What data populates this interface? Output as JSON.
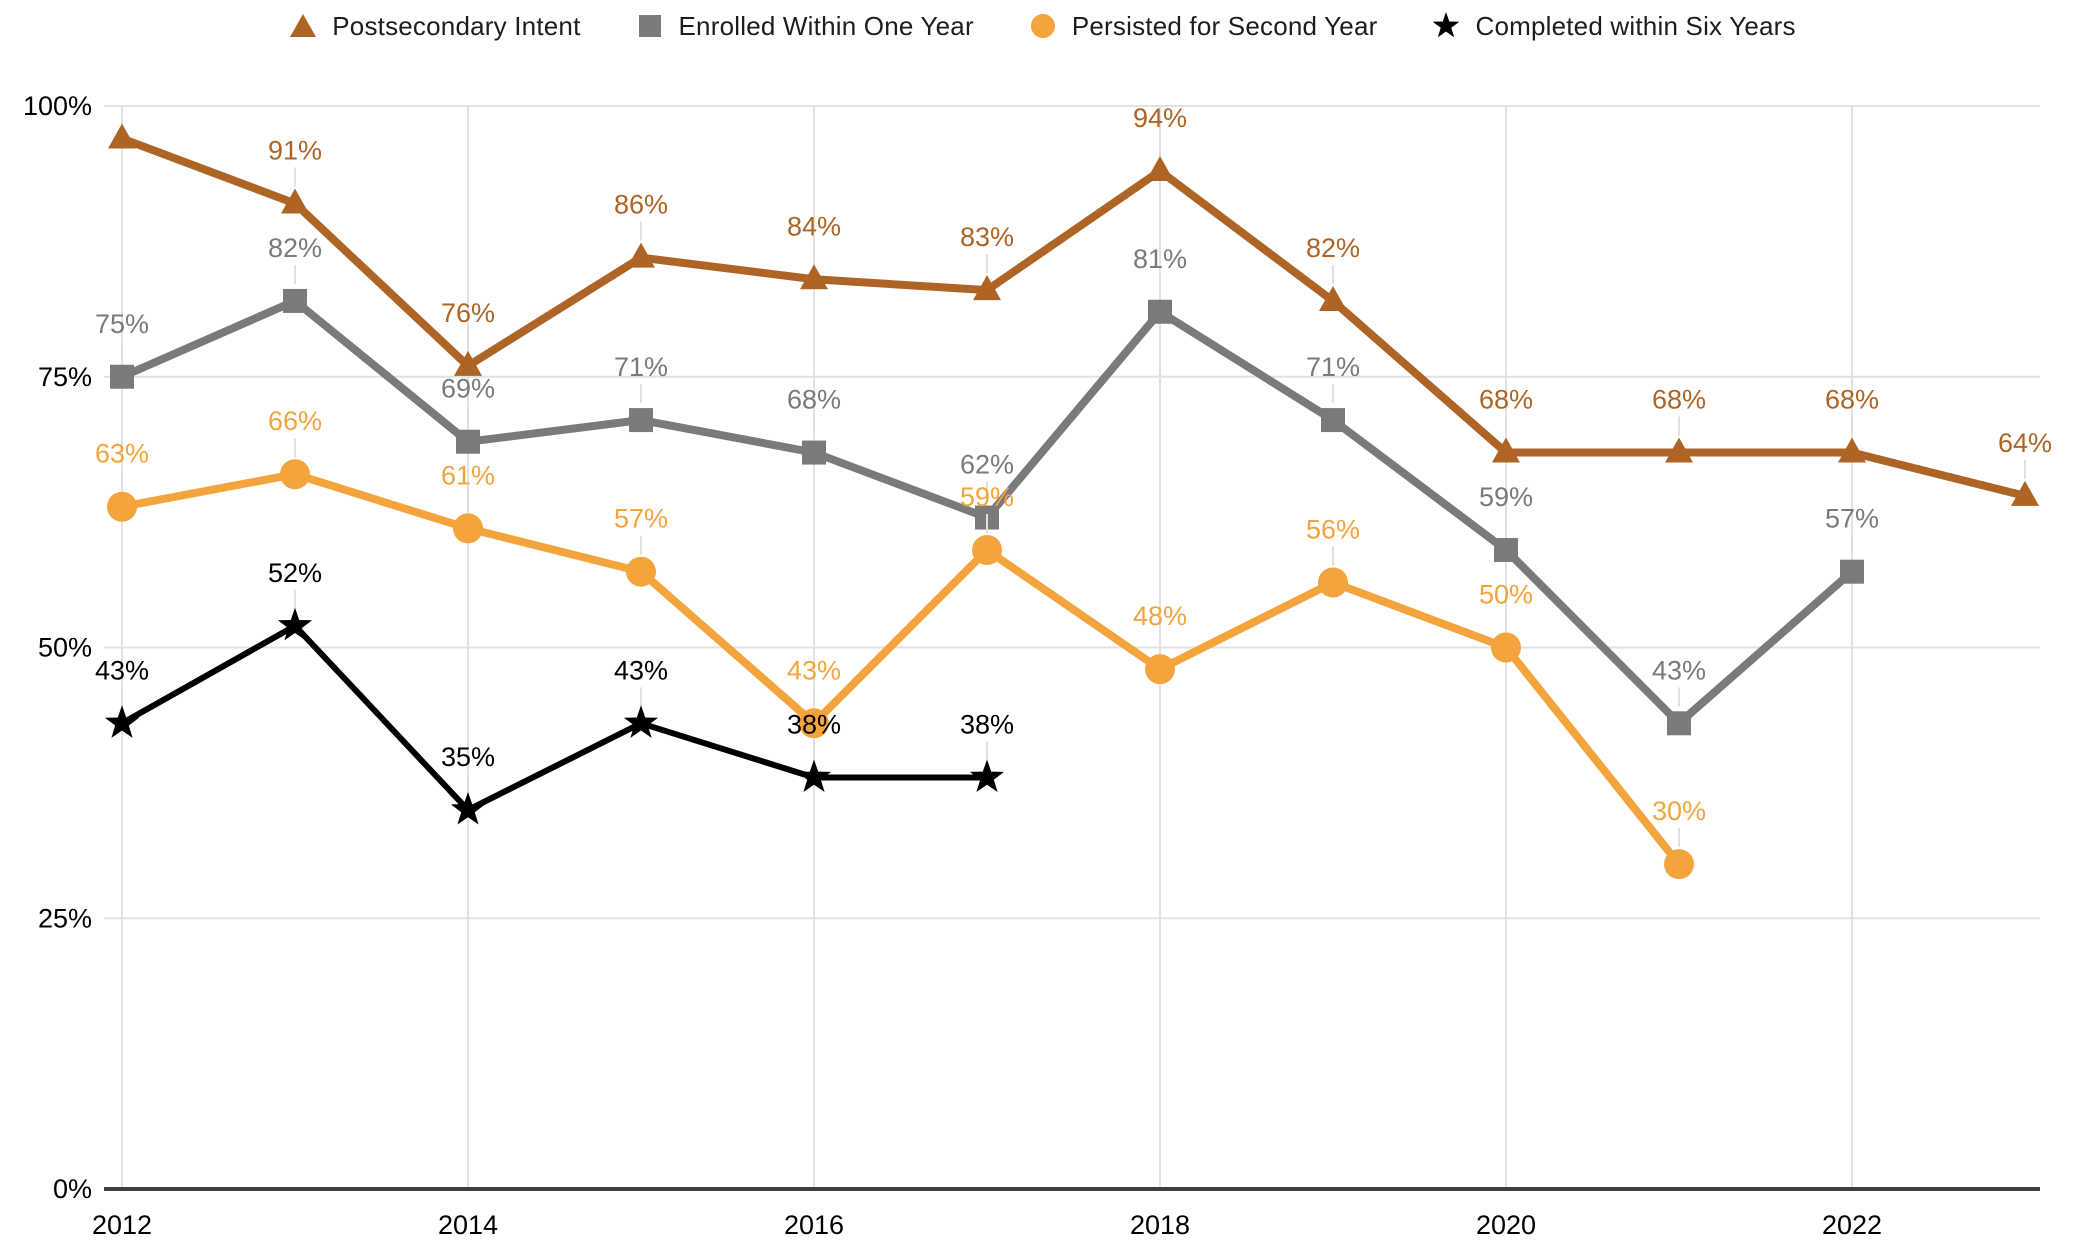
{
  "chart_data": {
    "type": "line",
    "x": [
      2012,
      2013,
      2014,
      2015,
      2016,
      2017,
      2018,
      2019,
      2020,
      2021,
      2022,
      2023
    ],
    "x_axis_ticks": [
      "2012",
      "2014",
      "2016",
      "2018",
      "2020",
      "2022"
    ],
    "y_axis_ticks": [
      "0%",
      "25%",
      "50%",
      "75%",
      "100%"
    ],
    "ylim": [
      0,
      100
    ],
    "grid": true,
    "legend_position": "top",
    "series": [
      {
        "name": "Postsecondary Intent",
        "color": "#ad6424",
        "marker": "triangle",
        "values": [
          97,
          91,
          76,
          86,
          84,
          83,
          94,
          82,
          68,
          68,
          68,
          64
        ],
        "labels": [
          null,
          "91%",
          "76%",
          "86%",
          "84%",
          "83%",
          "94%",
          "82%",
          "68%",
          "68%",
          "68%",
          "64%"
        ]
      },
      {
        "name": "Enrolled Within One Year",
        "color": "#7a7a7a",
        "marker": "square",
        "values": [
          75,
          82,
          69,
          71,
          68,
          62,
          81,
          71,
          59,
          43,
          57,
          null
        ],
        "labels": [
          "75%",
          "82%",
          "69%",
          "71%",
          "68%",
          "62%",
          "81%",
          "71%",
          "59%",
          "43%",
          "57%",
          null
        ]
      },
      {
        "name": "Persisted for Second Year",
        "color": "#f3a43c",
        "marker": "circle",
        "values": [
          63,
          66,
          61,
          57,
          43,
          59,
          48,
          56,
          50,
          30,
          null,
          null
        ],
        "labels": [
          "63%",
          "66%",
          "61%",
          "57%",
          "43%",
          "59%",
          "48%",
          "56%",
          "50%",
          "30%",
          null,
          null
        ]
      },
      {
        "name": "Completed within Six Years",
        "color": "#000000",
        "marker": "star",
        "values": [
          43,
          52,
          35,
          43,
          38,
          38,
          null,
          null,
          null,
          null,
          null,
          null
        ],
        "labels": [
          "43%",
          "52%",
          "35%",
          "43%",
          "38%",
          "38%",
          null,
          null,
          null,
          null,
          null,
          null
        ]
      }
    ]
  },
  "styles": {
    "background": "#ffffff",
    "grid_color": "#e2e2e2",
    "axis_line_color": "#3f3f3f",
    "tick_label_color": "#000000",
    "leader_line_color": "#e0e0e0"
  }
}
